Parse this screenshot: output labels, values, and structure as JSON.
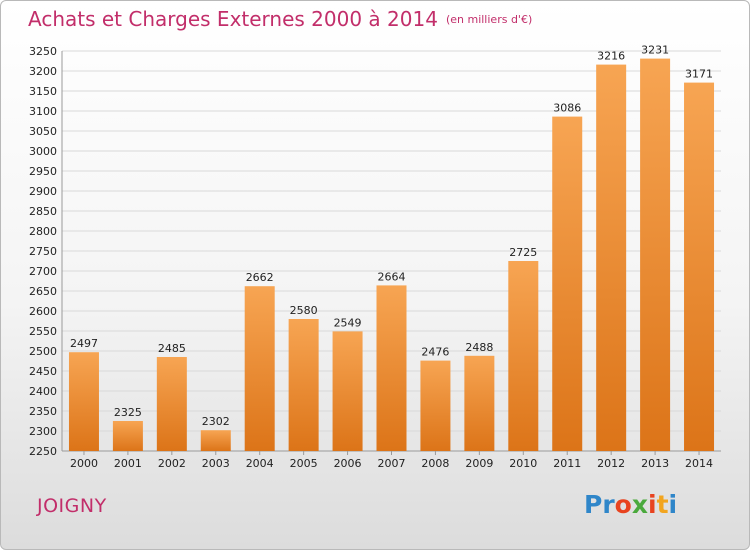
{
  "header": {
    "title": "Achats et Charges Externes 2000 à 2014",
    "subtitle": "(en milliers d'€)"
  },
  "footer": {
    "city": "JOIGNY",
    "logo_letters": [
      "P",
      "r",
      "o",
      "x",
      "i",
      "t",
      "i"
    ]
  },
  "colors": {
    "title": "#c22e6a",
    "bar_top": "#f7a553",
    "bar_bottom": "#dc7418",
    "logo": [
      "#2f86c9",
      "#2f86c9",
      "#e8431f",
      "#4aa93c",
      "#e8431f",
      "#f2a51f",
      "#2f86c9"
    ]
  },
  "chart_data": {
    "type": "bar",
    "title": "Achats et Charges Externes 2000 à 2014",
    "subtitle": "(en milliers d'€)",
    "categories": [
      "2000",
      "2001",
      "2002",
      "2003",
      "2004",
      "2005",
      "2006",
      "2007",
      "2008",
      "2009",
      "2010",
      "2011",
      "2012",
      "2013",
      "2014"
    ],
    "values": [
      2497,
      2325,
      2485,
      2302,
      2662,
      2580,
      2549,
      2664,
      2476,
      2488,
      2725,
      3086,
      3216,
      3231,
      3171
    ],
    "xlabel": "",
    "ylabel": "",
    "ylim": [
      2250,
      3250
    ],
    "y_tick_step": 50,
    "grid": "horizontal"
  }
}
